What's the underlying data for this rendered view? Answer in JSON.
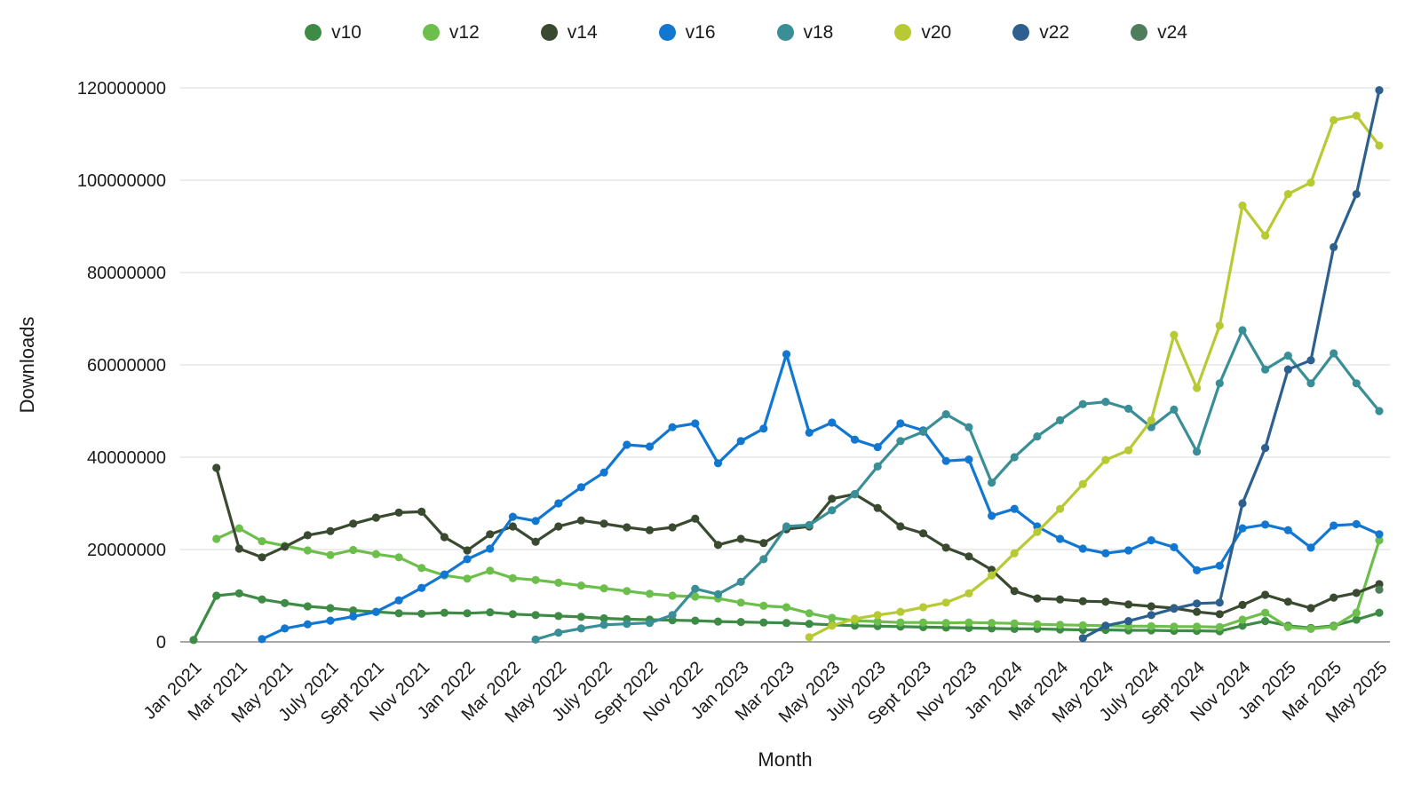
{
  "palette": {
    "background": "#ffffff",
    "gridline": "#d9d9d9",
    "axis_line": "#8c8c8c",
    "text": "#1a1a1a"
  },
  "chart_data": {
    "type": "line",
    "title": "",
    "xlabel": "Month",
    "ylabel": "Downloads",
    "ylim": [
      0,
      120000000
    ],
    "y_ticks": [
      0,
      20000000,
      40000000,
      60000000,
      80000000,
      100000000,
      120000000
    ],
    "grid": "horizontal",
    "legend_position": "top-center",
    "x_tick_every": 2,
    "x_tick_rotation": -45,
    "x": [
      "Jan 2021",
      "Feb 2021",
      "Mar 2021",
      "Apr 2021",
      "May 2021",
      "Jun 2021",
      "July 2021",
      "Aug 2021",
      "Sept 2021",
      "Oct 2021",
      "Nov 2021",
      "Dec 2021",
      "Jan 2022",
      "Feb 2022",
      "Mar 2022",
      "Apr 2022",
      "May 2022",
      "Jun 2022",
      "July 2022",
      "Aug 2022",
      "Sept 2022",
      "Oct 2022",
      "Nov 2022",
      "Dec 2022",
      "Jan 2023",
      "Feb 2023",
      "Mar 2023",
      "Apr 2023",
      "May 2023",
      "Jun 2023",
      "July 2023",
      "Aug 2023",
      "Sept 2023",
      "Oct 2023",
      "Nov 2023",
      "Dec 2023",
      "Jan 2024",
      "Feb 2024",
      "Mar 2024",
      "Apr 2024",
      "May 2024",
      "Jun 2024",
      "July 2024",
      "Aug 2024",
      "Sept 2024",
      "Oct 2024",
      "Nov 2024",
      "Dec 2024",
      "Jan 2025",
      "Feb 2025",
      "Mar 2025",
      "Apr 2025",
      "May 2025"
    ],
    "series": [
      {
        "name": "v10",
        "color": "#3d8b44",
        "values": [
          400000,
          10000000,
          10500000,
          9200000,
          8400000,
          7700000,
          7300000,
          6800000,
          6500000,
          6200000,
          6100000,
          6300000,
          6200000,
          6400000,
          6000000,
          5800000,
          5600000,
          5400000,
          5100000,
          4900000,
          4800000,
          4700000,
          4600000,
          4400000,
          4300000,
          4200000,
          4100000,
          3900000,
          3700000,
          3500000,
          3400000,
          3300000,
          3200000,
          3100000,
          3000000,
          2900000,
          2800000,
          2800000,
          2700000,
          2600000,
          2600000,
          2500000,
          2500000,
          2400000,
          2400000,
          2300000,
          3500000,
          4500000,
          3500000,
          3000000,
          3500000,
          4800000,
          6300000
        ]
      },
      {
        "name": "v12",
        "color": "#6cbf4b",
        "values": [
          null,
          22300000,
          24600000,
          21800000,
          20800000,
          19800000,
          18800000,
          19900000,
          19000000,
          18300000,
          16000000,
          14400000,
          13700000,
          15400000,
          13800000,
          13400000,
          12800000,
          12200000,
          11600000,
          11000000,
          10400000,
          10000000,
          9800000,
          9400000,
          8500000,
          7800000,
          7500000,
          6200000,
          5200000,
          4600000,
          4400000,
          4200000,
          4200000,
          4100000,
          4200000,
          4100000,
          4000000,
          3800000,
          3700000,
          3600000,
          3500000,
          3400000,
          3400000,
          3300000,
          3300000,
          3200000,
          4800000,
          6300000,
          3200000,
          2800000,
          3300000,
          6300000,
          22000000
        ]
      },
      {
        "name": "v14",
        "color": "#3a4a30",
        "values": [
          null,
          37700000,
          20200000,
          18300000,
          20600000,
          23100000,
          24000000,
          25600000,
          26900000,
          28000000,
          28200000,
          22700000,
          19800000,
          23300000,
          25000000,
          21700000,
          25000000,
          26300000,
          25600000,
          24800000,
          24200000,
          24800000,
          26700000,
          21000000,
          22300000,
          21400000,
          24400000,
          25000000,
          31000000,
          32000000,
          29000000,
          25000000,
          23500000,
          20400000,
          18500000,
          15600000,
          11000000,
          9400000,
          9200000,
          8800000,
          8700000,
          8100000,
          7700000,
          7300000,
          6500000,
          6000000,
          8000000,
          10200000,
          8700000,
          7300000,
          9600000,
          10600000,
          12500000
        ]
      },
      {
        "name": "v16",
        "color": "#1277d1",
        "values": [
          null,
          null,
          null,
          600000,
          2900000,
          3800000,
          4600000,
          5500000,
          6500000,
          9000000,
          11700000,
          14600000,
          17900000,
          20200000,
          27100000,
          26200000,
          30000000,
          33500000,
          36700000,
          42700000,
          42300000,
          46500000,
          47300000,
          38700000,
          43500000,
          46200000,
          62300000,
          45300000,
          47500000,
          43800000,
          42200000,
          47300000,
          45800000,
          39200000,
          39500000,
          27300000,
          28800000,
          25000000,
          22300000,
          20200000,
          19200000,
          19800000,
          22000000,
          20500000,
          15500000,
          16500000,
          24600000,
          25400000,
          24200000,
          20400000,
          25200000,
          25500000,
          23300000
        ]
      },
      {
        "name": "v18",
        "color": "#3a8e96",
        "values": [
          null,
          null,
          null,
          null,
          null,
          null,
          null,
          null,
          null,
          null,
          null,
          null,
          null,
          null,
          null,
          500000,
          2000000,
          2900000,
          3700000,
          3900000,
          4100000,
          5800000,
          11500000,
          10300000,
          13000000,
          17900000,
          25000000,
          25300000,
          28500000,
          32000000,
          38000000,
          43500000,
          45500000,
          49300000,
          46500000,
          34500000,
          40000000,
          44500000,
          48000000,
          51500000,
          52000000,
          50500000,
          46500000,
          50300000,
          41200000,
          56000000,
          67500000,
          59000000,
          62000000,
          56000000,
          62500000,
          56000000,
          50000000
        ]
      },
      {
        "name": "v20",
        "color": "#b8ca33",
        "values": [
          null,
          null,
          null,
          null,
          null,
          null,
          null,
          null,
          null,
          null,
          null,
          null,
          null,
          null,
          null,
          null,
          null,
          null,
          null,
          null,
          null,
          null,
          null,
          null,
          null,
          null,
          null,
          1000000,
          3500000,
          5000000,
          5800000,
          6500000,
          7500000,
          8500000,
          10500000,
          14400000,
          19200000,
          23800000,
          28800000,
          34200000,
          39400000,
          41500000,
          48000000,
          66500000,
          55000000,
          68500000,
          94500000,
          88000000,
          97000000,
          99500000,
          113000000,
          114000000,
          107500000
        ]
      },
      {
        "name": "v22",
        "color": "#2d608f",
        "values": [
          null,
          null,
          null,
          null,
          null,
          null,
          null,
          null,
          null,
          null,
          null,
          null,
          null,
          null,
          null,
          null,
          null,
          null,
          null,
          null,
          null,
          null,
          null,
          null,
          null,
          null,
          null,
          null,
          null,
          null,
          null,
          null,
          null,
          null,
          null,
          null,
          null,
          null,
          null,
          800000,
          3500000,
          4500000,
          5800000,
          7200000,
          8300000,
          8500000,
          30000000,
          42000000,
          59000000,
          61000000,
          85500000,
          97000000,
          119500000
        ]
      },
      {
        "name": "v24",
        "color": "#4e7d5b",
        "values": [
          null,
          null,
          null,
          null,
          null,
          null,
          null,
          null,
          null,
          null,
          null,
          null,
          null,
          null,
          null,
          null,
          null,
          null,
          null,
          null,
          null,
          null,
          null,
          null,
          null,
          null,
          null,
          null,
          null,
          null,
          null,
          null,
          null,
          null,
          null,
          null,
          null,
          null,
          null,
          null,
          null,
          null,
          null,
          null,
          null,
          null,
          null,
          null,
          null,
          null,
          null,
          null,
          11300000
        ]
      }
    ]
  }
}
